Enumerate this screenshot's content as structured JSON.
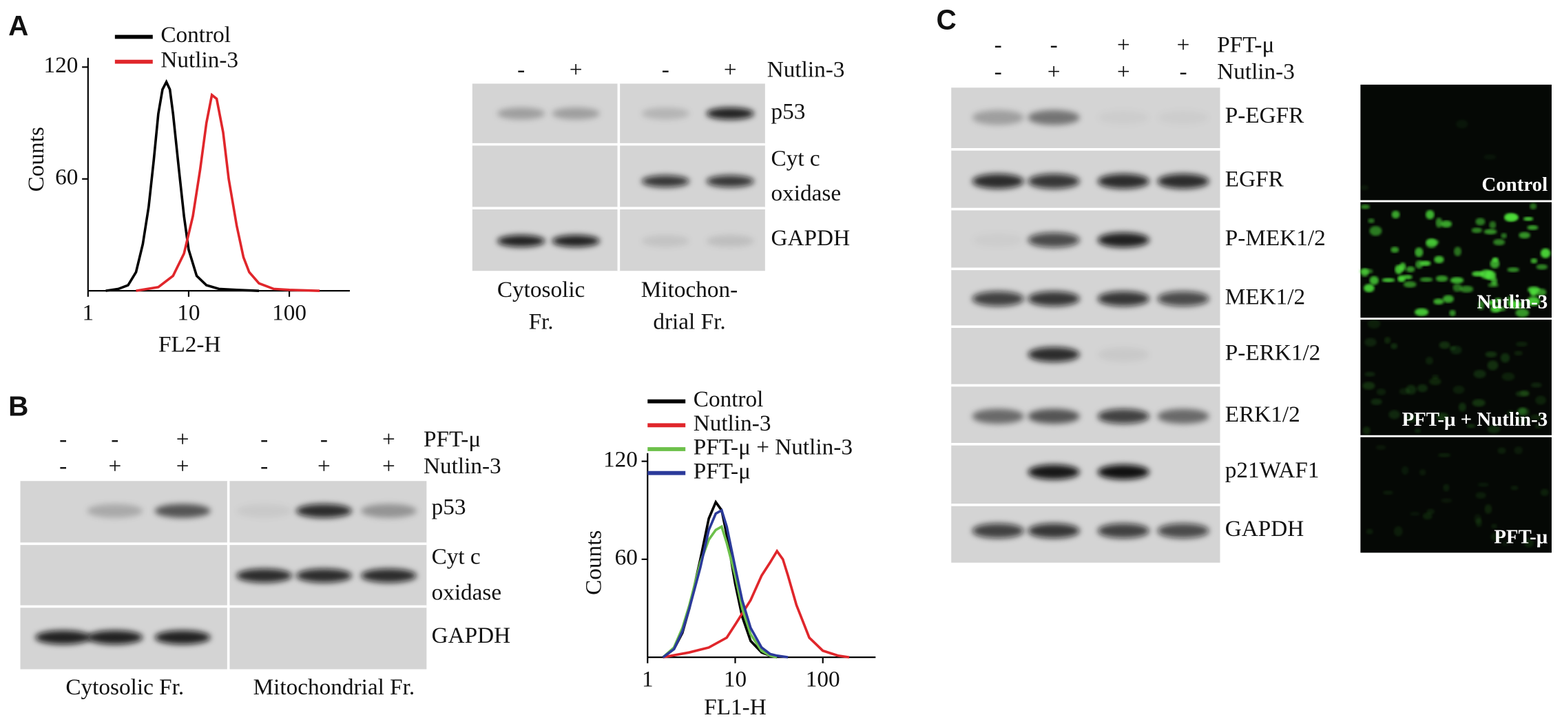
{
  "chart_data": [
    {
      "type": "line",
      "xscale": "log",
      "x_label": "FL2-H",
      "y_label": "Counts",
      "xlim": [
        1,
        400
      ],
      "ylim": [
        0,
        125
      ],
      "xticks": [
        1,
        10,
        100
      ],
      "yticks": [
        60,
        120
      ],
      "series": [
        {
          "name": "Control",
          "color": "#000000",
          "x": [
            1.5,
            2,
            2.5,
            3,
            3.5,
            4,
            4.5,
            5,
            5.5,
            6,
            6.5,
            7,
            8,
            9,
            10,
            12,
            15,
            20,
            30,
            50
          ],
          "values": [
            0,
            1,
            3,
            10,
            25,
            45,
            70,
            95,
            108,
            112,
            108,
            95,
            65,
            40,
            22,
            8,
            3,
            1,
            0.5,
            0
          ]
        },
        {
          "name": "Nutlin-3",
          "color": "#e0262b",
          "x": [
            3,
            5,
            7,
            9,
            11,
            13,
            15,
            17,
            19,
            22,
            25,
            30,
            35,
            40,
            50,
            70,
            100,
            200
          ],
          "values": [
            0,
            2,
            8,
            20,
            40,
            65,
            90,
            105,
            103,
            85,
            60,
            35,
            18,
            10,
            4,
            1,
            0.5,
            0
          ]
        }
      ]
    },
    {
      "type": "line",
      "xscale": "log",
      "x_label": "FL1-H",
      "y_label": "Counts",
      "xlim": [
        1,
        400
      ],
      "ylim": [
        0,
        125
      ],
      "xticks": [
        1,
        10,
        100
      ],
      "yticks": [
        60,
        120
      ],
      "series": [
        {
          "name": "Control",
          "color": "#000000",
          "x": [
            1.5,
            2,
            2.5,
            3,
            4,
            5,
            6,
            7,
            8,
            10,
            12,
            15,
            20,
            25,
            30
          ],
          "values": [
            0,
            5,
            15,
            30,
            60,
            85,
            95,
            90,
            75,
            45,
            25,
            10,
            3,
            1,
            0
          ]
        },
        {
          "name": "Nutlin-3",
          "color": "#e0262b",
          "x": [
            1.5,
            3,
            5,
            8,
            10,
            15,
            20,
            25,
            30,
            35,
            40,
            50,
            70,
            100,
            150,
            200
          ],
          "values": [
            0,
            3,
            6,
            12,
            20,
            35,
            50,
            58,
            65,
            60,
            50,
            32,
            12,
            4,
            1,
            0
          ]
        },
        {
          "name": "PFT-μ + Nutlin-3",
          "color": "#6cc04a",
          "x": [
            1.5,
            2,
            2.5,
            3,
            4,
            5,
            6,
            7,
            8,
            10,
            12,
            15,
            20,
            25,
            30
          ],
          "values": [
            0,
            6,
            18,
            32,
            58,
            72,
            78,
            80,
            70,
            50,
            30,
            14,
            4,
            1,
            0
          ]
        },
        {
          "name": "PFT-μ",
          "color": "#2b3a9a",
          "x": [
            1.5,
            2,
            2.5,
            3,
            4,
            5,
            6,
            7,
            8,
            10,
            12,
            15,
            20,
            25,
            30,
            40
          ],
          "values": [
            0,
            5,
            16,
            30,
            55,
            78,
            88,
            90,
            80,
            55,
            35,
            18,
            6,
            2,
            1,
            0
          ]
        }
      ]
    }
  ],
  "figure": {
    "panel_labels": [
      "A",
      "B",
      "C"
    ],
    "blot_a": {
      "treatments": [
        {
          "name": "Nutlin-3",
          "signs": [
            "-",
            "+",
            "-",
            "+"
          ]
        }
      ],
      "rows": [
        [
          "p53"
        ],
        [
          "Cyt c",
          "oxidase"
        ],
        [
          "GAPDH"
        ]
      ],
      "fractions": [
        [
          "Cytosolic",
          "Fr."
        ],
        [
          "Mitochon-",
          "drial Fr."
        ]
      ]
    },
    "blot_b": {
      "treatments": [
        {
          "name": "PFT-μ",
          "signs": [
            "-",
            "-",
            "+",
            "-",
            "-",
            "+"
          ]
        },
        {
          "name": "Nutlin-3",
          "signs": [
            "-",
            "+",
            "+",
            "-",
            "+",
            "+"
          ]
        }
      ],
      "rows": [
        [
          "p53"
        ],
        [
          "Cyt c",
          "oxidase"
        ],
        [
          "GAPDH"
        ]
      ],
      "fractions": [
        [
          "Cytosolic Fr."
        ],
        [
          "Mitochondrial Fr."
        ]
      ]
    },
    "blot_c": {
      "treatments": [
        {
          "name": "PFT-μ",
          "signs": [
            "-",
            "-",
            "+",
            "+"
          ]
        },
        {
          "name": "Nutlin-3",
          "signs": [
            "-",
            "+",
            "+",
            "-"
          ]
        }
      ],
      "rows": [
        "P-EGFR",
        "EGFR",
        "P-MEK1/2",
        "MEK1/2",
        "P-ERK1/2",
        "ERK1/2",
        "p21WAF1",
        "GAPDH"
      ]
    },
    "micrographs": [
      "Control",
      "Nutlin-3",
      "PFT-μ + Nutlin-3",
      "PFT-μ"
    ]
  }
}
